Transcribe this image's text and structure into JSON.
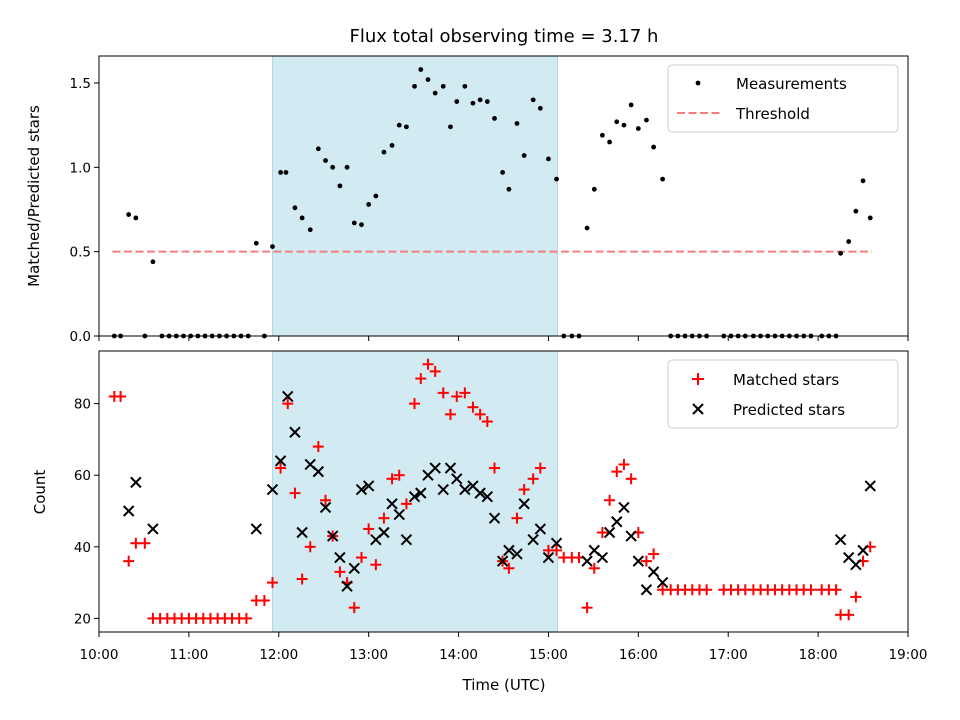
{
  "title": "Flux total observing time = 3.17 h",
  "colors": {
    "shade": "#add8e6",
    "threshold": "#f08080",
    "matched": "#ff0000",
    "predicted": "#000000",
    "measure": "#000000"
  },
  "chart_data": [
    {
      "type": "scatter",
      "ylabel": "Matched/Predicted stars",
      "ylim": [
        0,
        1.66
      ],
      "yticks": [
        "0.0",
        "0.5",
        "1.0",
        "1.5"
      ],
      "xlim": [
        10.0,
        19.0
      ],
      "shaded_span": [
        11.93,
        15.1
      ],
      "legend": {
        "position": "top-right",
        "entries": [
          "Measurements",
          "Threshold"
        ]
      },
      "threshold": {
        "name": "Threshold",
        "y": 0.5,
        "x": [
          10.15,
          18.6
        ]
      },
      "series": [
        {
          "name": "Measurements",
          "points": [
            [
              10.17,
              0
            ],
            [
              10.24,
              0
            ],
            [
              10.33,
              0.72
            ],
            [
              10.41,
              0.7
            ],
            [
              10.51,
              0
            ],
            [
              10.6,
              0.44
            ],
            [
              10.7,
              0
            ],
            [
              10.78,
              0
            ],
            [
              10.86,
              0
            ],
            [
              10.94,
              0
            ],
            [
              11.02,
              0
            ],
            [
              11.1,
              0
            ],
            [
              11.18,
              0
            ],
            [
              11.26,
              0
            ],
            [
              11.34,
              0
            ],
            [
              11.42,
              0
            ],
            [
              11.5,
              0
            ],
            [
              11.58,
              0
            ],
            [
              11.66,
              0
            ],
            [
              11.75,
              0.55
            ],
            [
              11.84,
              0
            ],
            [
              11.93,
              0.53
            ],
            [
              12.02,
              0.97
            ],
            [
              12.08,
              0.97
            ],
            [
              12.18,
              0.76
            ],
            [
              12.26,
              0.7
            ],
            [
              12.35,
              0.63
            ],
            [
              12.44,
              1.11
            ],
            [
              12.52,
              1.04
            ],
            [
              12.6,
              1.0
            ],
            [
              12.68,
              0.89
            ],
            [
              12.76,
              1.0
            ],
            [
              12.84,
              0.67
            ],
            [
              12.92,
              0.66
            ],
            [
              13.0,
              0.78
            ],
            [
              13.08,
              0.83
            ],
            [
              13.17,
              1.09
            ],
            [
              13.26,
              1.13
            ],
            [
              13.34,
              1.25
            ],
            [
              13.42,
              1.24
            ],
            [
              13.51,
              1.48
            ],
            [
              13.58,
              1.58
            ],
            [
              13.66,
              1.52
            ],
            [
              13.74,
              1.44
            ],
            [
              13.83,
              1.48
            ],
            [
              13.91,
              1.24
            ],
            [
              13.98,
              1.39
            ],
            [
              14.07,
              1.48
            ],
            [
              14.16,
              1.38
            ],
            [
              14.24,
              1.4
            ],
            [
              14.32,
              1.39
            ],
            [
              14.4,
              1.29
            ],
            [
              14.49,
              0.97
            ],
            [
              14.56,
              0.87
            ],
            [
              14.65,
              1.26
            ],
            [
              14.73,
              1.07
            ],
            [
              14.83,
              1.4
            ],
            [
              14.91,
              1.35
            ],
            [
              15.0,
              1.05
            ],
            [
              15.09,
              0.93
            ],
            [
              15.17,
              0
            ],
            [
              15.26,
              0
            ],
            [
              15.34,
              0
            ],
            [
              15.43,
              0.64
            ],
            [
              15.51,
              0.87
            ],
            [
              15.6,
              1.19
            ],
            [
              15.68,
              1.15
            ],
            [
              15.76,
              1.27
            ],
            [
              15.84,
              1.25
            ],
            [
              15.92,
              1.37
            ],
            [
              16.0,
              1.23
            ],
            [
              16.09,
              1.28
            ],
            [
              16.17,
              1.12
            ],
            [
              16.27,
              0.93
            ],
            [
              16.36,
              0
            ],
            [
              16.44,
              0
            ],
            [
              16.52,
              0
            ],
            [
              16.6,
              0
            ],
            [
              16.68,
              0
            ],
            [
              16.76,
              0
            ],
            [
              16.95,
              0
            ],
            [
              17.03,
              0
            ],
            [
              17.11,
              0
            ],
            [
              17.19,
              0
            ],
            [
              17.28,
              0
            ],
            [
              17.36,
              0
            ],
            [
              17.44,
              0
            ],
            [
              17.52,
              0
            ],
            [
              17.6,
              0
            ],
            [
              17.68,
              0
            ],
            [
              17.76,
              0
            ],
            [
              17.84,
              0
            ],
            [
              17.92,
              0
            ],
            [
              18.04,
              0
            ],
            [
              18.12,
              0
            ],
            [
              18.2,
              0
            ],
            [
              18.25,
              0.49
            ],
            [
              18.34,
              0.56
            ],
            [
              18.42,
              0.74
            ],
            [
              18.5,
              0.92
            ],
            [
              18.58,
              0.7
            ]
          ]
        }
      ]
    },
    {
      "type": "scatter",
      "ylabel": "Count",
      "xlabel": "Time (UTC)",
      "ylim": [
        16.2,
        94.7
      ],
      "yticks": [
        "20",
        "40",
        "60",
        "80"
      ],
      "xlim": [
        10.0,
        19.0
      ],
      "xticks": [
        "10:00",
        "11:00",
        "12:00",
        "13:00",
        "14:00",
        "15:00",
        "16:00",
        "17:00",
        "18:00",
        "19:00"
      ],
      "shaded_span": [
        11.93,
        15.1
      ],
      "legend": {
        "position": "top-right",
        "entries": [
          "Matched stars",
          "Predicted stars"
        ]
      },
      "series": [
        {
          "name": "Matched stars",
          "marker": "plus",
          "points": [
            [
              10.17,
              82
            ],
            [
              10.24,
              82
            ],
            [
              10.33,
              36
            ],
            [
              10.41,
              41
            ],
            [
              10.51,
              41
            ],
            [
              10.6,
              20
            ],
            [
              10.68,
              20
            ],
            [
              10.76,
              20
            ],
            [
              10.84,
              20
            ],
            [
              10.92,
              20
            ],
            [
              11.0,
              20
            ],
            [
              11.08,
              20
            ],
            [
              11.16,
              20
            ],
            [
              11.24,
              20
            ],
            [
              11.32,
              20
            ],
            [
              11.4,
              20
            ],
            [
              11.48,
              20
            ],
            [
              11.56,
              20
            ],
            [
              11.64,
              20
            ],
            [
              11.75,
              25
            ],
            [
              11.84,
              25
            ],
            [
              11.93,
              30
            ],
            [
              12.02,
              62
            ],
            [
              12.1,
              80
            ],
            [
              12.18,
              55
            ],
            [
              12.26,
              31
            ],
            [
              12.35,
              40
            ],
            [
              12.44,
              68
            ],
            [
              12.52,
              53
            ],
            [
              12.6,
              43
            ],
            [
              12.68,
              33
            ],
            [
              12.76,
              30
            ],
            [
              12.84,
              23
            ],
            [
              12.92,
              37
            ],
            [
              13.0,
              45
            ],
            [
              13.08,
              35
            ],
            [
              13.17,
              48
            ],
            [
              13.26,
              59
            ],
            [
              13.34,
              60
            ],
            [
              13.42,
              52
            ],
            [
              13.51,
              80
            ],
            [
              13.58,
              87
            ],
            [
              13.66,
              91
            ],
            [
              13.74,
              89
            ],
            [
              13.83,
              83
            ],
            [
              13.91,
              77
            ],
            [
              13.98,
              82
            ],
            [
              14.07,
              83
            ],
            [
              14.16,
              79
            ],
            [
              14.24,
              77
            ],
            [
              14.32,
              75
            ],
            [
              14.4,
              62
            ],
            [
              14.49,
              36
            ],
            [
              14.56,
              34
            ],
            [
              14.65,
              48
            ],
            [
              14.73,
              56
            ],
            [
              14.83,
              59
            ],
            [
              14.91,
              62
            ],
            [
              15.0,
              39
            ],
            [
              15.09,
              39
            ],
            [
              15.17,
              37
            ],
            [
              15.26,
              37
            ],
            [
              15.34,
              37
            ],
            [
              15.43,
              23
            ],
            [
              15.51,
              34
            ],
            [
              15.6,
              44
            ],
            [
              15.68,
              53
            ],
            [
              15.76,
              61
            ],
            [
              15.84,
              63
            ],
            [
              15.92,
              59
            ],
            [
              16.0,
              44
            ],
            [
              16.09,
              36
            ],
            [
              16.17,
              38
            ],
            [
              16.27,
              28
            ],
            [
              16.36,
              28
            ],
            [
              16.44,
              28
            ],
            [
              16.52,
              28
            ],
            [
              16.6,
              28
            ],
            [
              16.68,
              28
            ],
            [
              16.76,
              28
            ],
            [
              16.95,
              28
            ],
            [
              17.03,
              28
            ],
            [
              17.11,
              28
            ],
            [
              17.19,
              28
            ],
            [
              17.28,
              28
            ],
            [
              17.36,
              28
            ],
            [
              17.44,
              28
            ],
            [
              17.52,
              28
            ],
            [
              17.6,
              28
            ],
            [
              17.68,
              28
            ],
            [
              17.76,
              28
            ],
            [
              17.84,
              28
            ],
            [
              17.92,
              28
            ],
            [
              18.04,
              28
            ],
            [
              18.12,
              28
            ],
            [
              18.2,
              28
            ],
            [
              18.25,
              21
            ],
            [
              18.34,
              21
            ],
            [
              18.42,
              26
            ],
            [
              18.5,
              36
            ],
            [
              18.58,
              40
            ]
          ]
        },
        {
          "name": "Predicted stars",
          "marker": "x",
          "points": [
            [
              10.33,
              50
            ],
            [
              10.41,
              58
            ],
            [
              10.6,
              45
            ],
            [
              11.75,
              45
            ],
            [
              11.93,
              56
            ],
            [
              12.02,
              64
            ],
            [
              12.1,
              82
            ],
            [
              12.18,
              72
            ],
            [
              12.26,
              44
            ],
            [
              12.35,
              63
            ],
            [
              12.44,
              61
            ],
            [
              12.52,
              51
            ],
            [
              12.6,
              43
            ],
            [
              12.68,
              37
            ],
            [
              12.76,
              29
            ],
            [
              12.84,
              34
            ],
            [
              12.92,
              56
            ],
            [
              13.0,
              57
            ],
            [
              13.08,
              42
            ],
            [
              13.17,
              44
            ],
            [
              13.26,
              52
            ],
            [
              13.34,
              49
            ],
            [
              13.42,
              42
            ],
            [
              13.51,
              54
            ],
            [
              13.58,
              55
            ],
            [
              13.66,
              60
            ],
            [
              13.74,
              62
            ],
            [
              13.83,
              56
            ],
            [
              13.91,
              62
            ],
            [
              13.98,
              59
            ],
            [
              14.07,
              56
            ],
            [
              14.16,
              57
            ],
            [
              14.24,
              55
            ],
            [
              14.32,
              54
            ],
            [
              14.4,
              48
            ],
            [
              14.49,
              36
            ],
            [
              14.56,
              39
            ],
            [
              14.65,
              38
            ],
            [
              14.73,
              52
            ],
            [
              14.83,
              42
            ],
            [
              14.91,
              45
            ],
            [
              15.0,
              37
            ],
            [
              15.09,
              41
            ],
            [
              15.43,
              36
            ],
            [
              15.51,
              39
            ],
            [
              15.6,
              37
            ],
            [
              15.68,
              44
            ],
            [
              15.76,
              47
            ],
            [
              15.84,
              51
            ],
            [
              15.92,
              43
            ],
            [
              16.0,
              36
            ],
            [
              16.09,
              28
            ],
            [
              16.17,
              33
            ],
            [
              16.27,
              30
            ],
            [
              18.25,
              42
            ],
            [
              18.34,
              37
            ],
            [
              18.42,
              35
            ],
            [
              18.5,
              39
            ],
            [
              18.58,
              57
            ]
          ]
        }
      ]
    }
  ]
}
